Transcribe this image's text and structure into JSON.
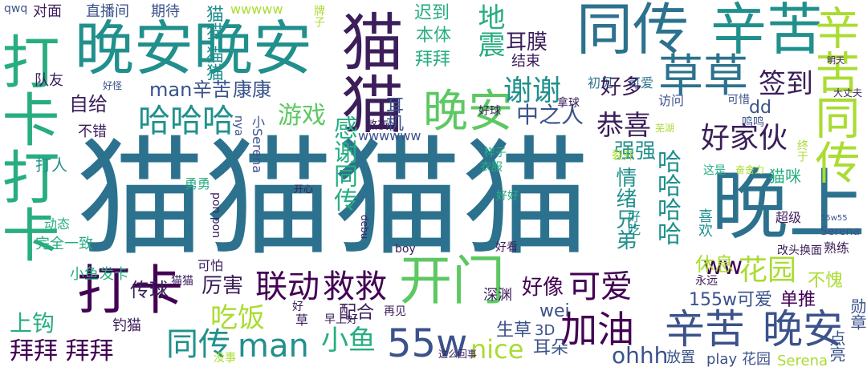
{
  "palette": {
    "dark_purple": "#440154",
    "indigo": "#3b528b",
    "teal": "#2c728e",
    "sea": "#21908d",
    "green": "#27ad81",
    "lime": "#5dc863",
    "yellow": "#aadc32",
    "gold": "#d3e22a"
  },
  "words": [
    {
      "text": "猫猫猫猫",
      "color": "#2c728e"
    },
    {
      "text": "晚上",
      "color": "#2c728e"
    },
    {
      "text": "晚安晚安",
      "color": "#21908d"
    },
    {
      "text": "同传",
      "color": "#2c728e"
    },
    {
      "text": "辛苦",
      "color": "#21908d"
    },
    {
      "text": "猫猫",
      "color": "#3b1e5a"
    },
    {
      "text": "打卡打卡",
      "color": "#27ad81"
    },
    {
      "text": "打卡",
      "color": "#440154"
    },
    {
      "text": "开门",
      "color": "#5dc863"
    },
    {
      "text": "晚安",
      "color": "#5dc863"
    },
    {
      "text": "草草",
      "color": "#2c728e"
    },
    {
      "text": "辛苦同传",
      "color": "#aadc32"
    },
    {
      "text": "辛苦",
      "color": "#3b528b"
    },
    {
      "text": "晚安",
      "color": "#3b528b"
    },
    {
      "text": "55w",
      "color": "#3b528b"
    },
    {
      "text": "加油",
      "color": "#440154"
    },
    {
      "text": "可爱",
      "color": "#440154"
    },
    {
      "text": "联动",
      "color": "#440154"
    },
    {
      "text": "救救",
      "color": "#440154"
    },
    {
      "text": "同传",
      "color": "#21908d"
    },
    {
      "text": "man",
      "color": "#21908d"
    },
    {
      "text": "拜拜 拜拜",
      "color": "#440154"
    },
    {
      "text": "哈哈哈",
      "color": "#21908d"
    },
    {
      "text": "谢谢",
      "color": "#21908d"
    },
    {
      "text": "好家伙",
      "color": "#3b1e5a"
    },
    {
      "text": "签到",
      "color": "#3b1e5a"
    },
    {
      "text": "恭喜",
      "color": "#3b1e5a"
    },
    {
      "text": "花园",
      "color": "#aadc32"
    },
    {
      "text": "nice",
      "color": "#aadc32"
    },
    {
      "text": "小鱼",
      "color": "#27ad81"
    },
    {
      "text": "吃饭",
      "color": "#aadc32"
    },
    {
      "text": "传球",
      "color": "#3b1e5a"
    },
    {
      "text": "厉害",
      "color": "#3b1e5a"
    },
    {
      "text": "上钩",
      "color": "#27ad81"
    },
    {
      "text": "游戏",
      "color": "#5dc863"
    },
    {
      "text": "中之人",
      "color": "#3b528b"
    },
    {
      "text": "ohhh",
      "color": "#3b528b"
    },
    {
      "text": "好像",
      "color": "#440154"
    },
    {
      "text": "ww",
      "color": "#440154"
    },
    {
      "text": "直播间",
      "color": "#3b528b"
    },
    {
      "text": "期待",
      "color": "#3b528b"
    },
    {
      "text": "对面",
      "color": "#3b1e5a"
    },
    {
      "text": "wwwww",
      "color": "#aadc32"
    },
    {
      "text": "迟到",
      "color": "#27ad81"
    },
    {
      "text": "本体",
      "color": "#27ad81"
    },
    {
      "text": "地震",
      "color": "#27ad81"
    },
    {
      "text": "耳膜",
      "color": "#3b1e5a"
    },
    {
      "text": "结束",
      "color": "#3b1e5a"
    },
    {
      "text": "拜拜",
      "color": "#27ad81"
    },
    {
      "text": "初见",
      "color": "#2c728e"
    },
    {
      "text": "可爱",
      "color": "#2c728e"
    },
    {
      "text": "访问",
      "color": "#3b528b"
    },
    {
      "text": "可惜",
      "color": "#3b528b"
    },
    {
      "text": "好多",
      "color": "#3b1e5a"
    },
    {
      "text": "自给",
      "color": "#3b1e5a"
    },
    {
      "text": "man",
      "color": "#3b528b"
    },
    {
      "text": "辛苦",
      "color": "#3b528b"
    },
    {
      "text": "康康",
      "color": "#3b528b"
    },
    {
      "text": "队友",
      "color": "#3b1e5a"
    },
    {
      "text": "不错",
      "color": "#3b1e5a"
    },
    {
      "text": "打人",
      "color": "#21908d"
    },
    {
      "text": "感谢同传",
      "color": "#27ad81"
    },
    {
      "text": "哈哈哈哈",
      "color": "#21908d"
    },
    {
      "text": "情绪兄弟",
      "color": "#21908d"
    },
    {
      "text": "强强",
      "color": "#21908d"
    },
    {
      "text": "猫咪",
      "color": "#27ad81"
    },
    {
      "text": "休息",
      "color": "#aadc32"
    },
    {
      "text": "不愧",
      "color": "#aadc32"
    },
    {
      "text": "155w",
      "color": "#3b528b"
    },
    {
      "text": "可爱",
      "color": "#3b528b"
    },
    {
      "text": "单推",
      "color": "#440154"
    },
    {
      "text": "放置",
      "color": "#3b528b"
    },
    {
      "text": "play",
      "color": "#3b528b"
    },
    {
      "text": "花园",
      "color": "#3b528b"
    },
    {
      "text": "Serena",
      "color": "#aadc32"
    },
    {
      "text": "生草",
      "color": "#3b528b"
    },
    {
      "text": "3D",
      "color": "#3b528b"
    },
    {
      "text": "耳朵",
      "color": "#3b528b"
    },
    {
      "text": "wei",
      "color": "#3b528b"
    },
    {
      "text": "配合",
      "color": "#3b1e5a"
    },
    {
      "text": "早上好",
      "color": "#3b1e5a"
    },
    {
      "text": "钓猫",
      "color": "#3b1e5a"
    },
    {
      "text": "深渊",
      "color": "#3b1e5a"
    },
    {
      "text": "再见",
      "color": "#3b1e5a"
    },
    {
      "text": "小鱼",
      "color": "#27ad81"
    },
    {
      "text": "发卡",
      "color": "#27ad81"
    },
    {
      "text": "完全一致",
      "color": "#27ad81"
    },
    {
      "text": "动态",
      "color": "#27ad81"
    },
    {
      "text": "可怕",
      "color": "#3b1e5a"
    },
    {
      "text": "猫猫",
      "color": "#3b1e5a"
    },
    {
      "text": "boy",
      "color": "#3b1e5a"
    },
    {
      "text": "好看",
      "color": "#3b1e5a"
    },
    {
      "text": "喜欢",
      "color": "#21908d"
    },
    {
      "text": "好吃",
      "color": "#21908d"
    },
    {
      "text": "超级",
      "color": "#3b1e5a"
    },
    {
      "text": "熟练",
      "color": "#3b1e5a"
    },
    {
      "text": "改头换面",
      "color": "#3b1e5a"
    },
    {
      "text": "永远",
      "color": "#3b1e5a"
    },
    {
      "text": "勇勇",
      "color": "#27ad81"
    },
    {
      "text": "这是",
      "color": "#27ad81"
    },
    {
      "text": "好好",
      "color": "#27ad81"
    },
    {
      "text": "熬夜",
      "color": "#3b1e5a"
    },
    {
      "text": "好球",
      "color": "#3b1e5a"
    },
    {
      "text": "拿球",
      "color": "#3b1e5a"
    },
    {
      "text": "wwwwww",
      "color": "#3b528b"
    },
    {
      "text": "样子",
      "color": "#27ad81"
    },
    {
      "text": "衣服",
      "color": "#27ad81"
    },
    {
      "text": "牌子",
      "color": "#aadc32"
    },
    {
      "text": "没事",
      "color": "#aadc32"
    },
    {
      "text": "qwq",
      "color": "#3b528b"
    },
    {
      "text": "dd",
      "color": "#3b528b"
    },
    {
      "text": "nya",
      "color": "#3b528b"
    },
    {
      "text": "小Serena",
      "color": "#3b528b"
    },
    {
      "text": "鸣鸣",
      "color": "#3b528b"
    },
    {
      "text": "终于",
      "color": "#aadc32"
    },
    {
      "text": "裂开",
      "color": "#aadc32"
    },
    {
      "text": "芜湖",
      "color": "#aadc32"
    },
    {
      "text": "奋舍力",
      "color": "#aadc32"
    },
    {
      "text": "大丈夫",
      "color": "#3b1e5a"
    },
    {
      "text": "明天",
      "color": "#3b1e5a"
    },
    {
      "text": "好怪",
      "color": "#3b528b"
    },
    {
      "text": "耳机",
      "color": "#3b528b"
    },
    {
      "text": "这么回事",
      "color": "#3b1e5a"
    },
    {
      "text": "点亮",
      "color": "#3b528b"
    },
    {
      "text": "勋章",
      "color": "#3b528b"
    },
    {
      "text": "pon pon",
      "color": "#3b1e5a"
    },
    {
      "text": "debu",
      "color": "#3b1e5a"
    },
    {
      "text": "55w55",
      "color": "#3b528b"
    },
    {
      "text": "Serena",
      "color": "#3b528b"
    },
    {
      "text": "开心",
      "color": "#3b1e5a"
    },
    {
      "text": "好",
      "color": "#3b1e5a"
    },
    {
      "text": "草",
      "color": "#3b1e5a"
    },
    {
      "text": "猫猫 猫猫",
      "color": "#21908d"
    }
  ]
}
